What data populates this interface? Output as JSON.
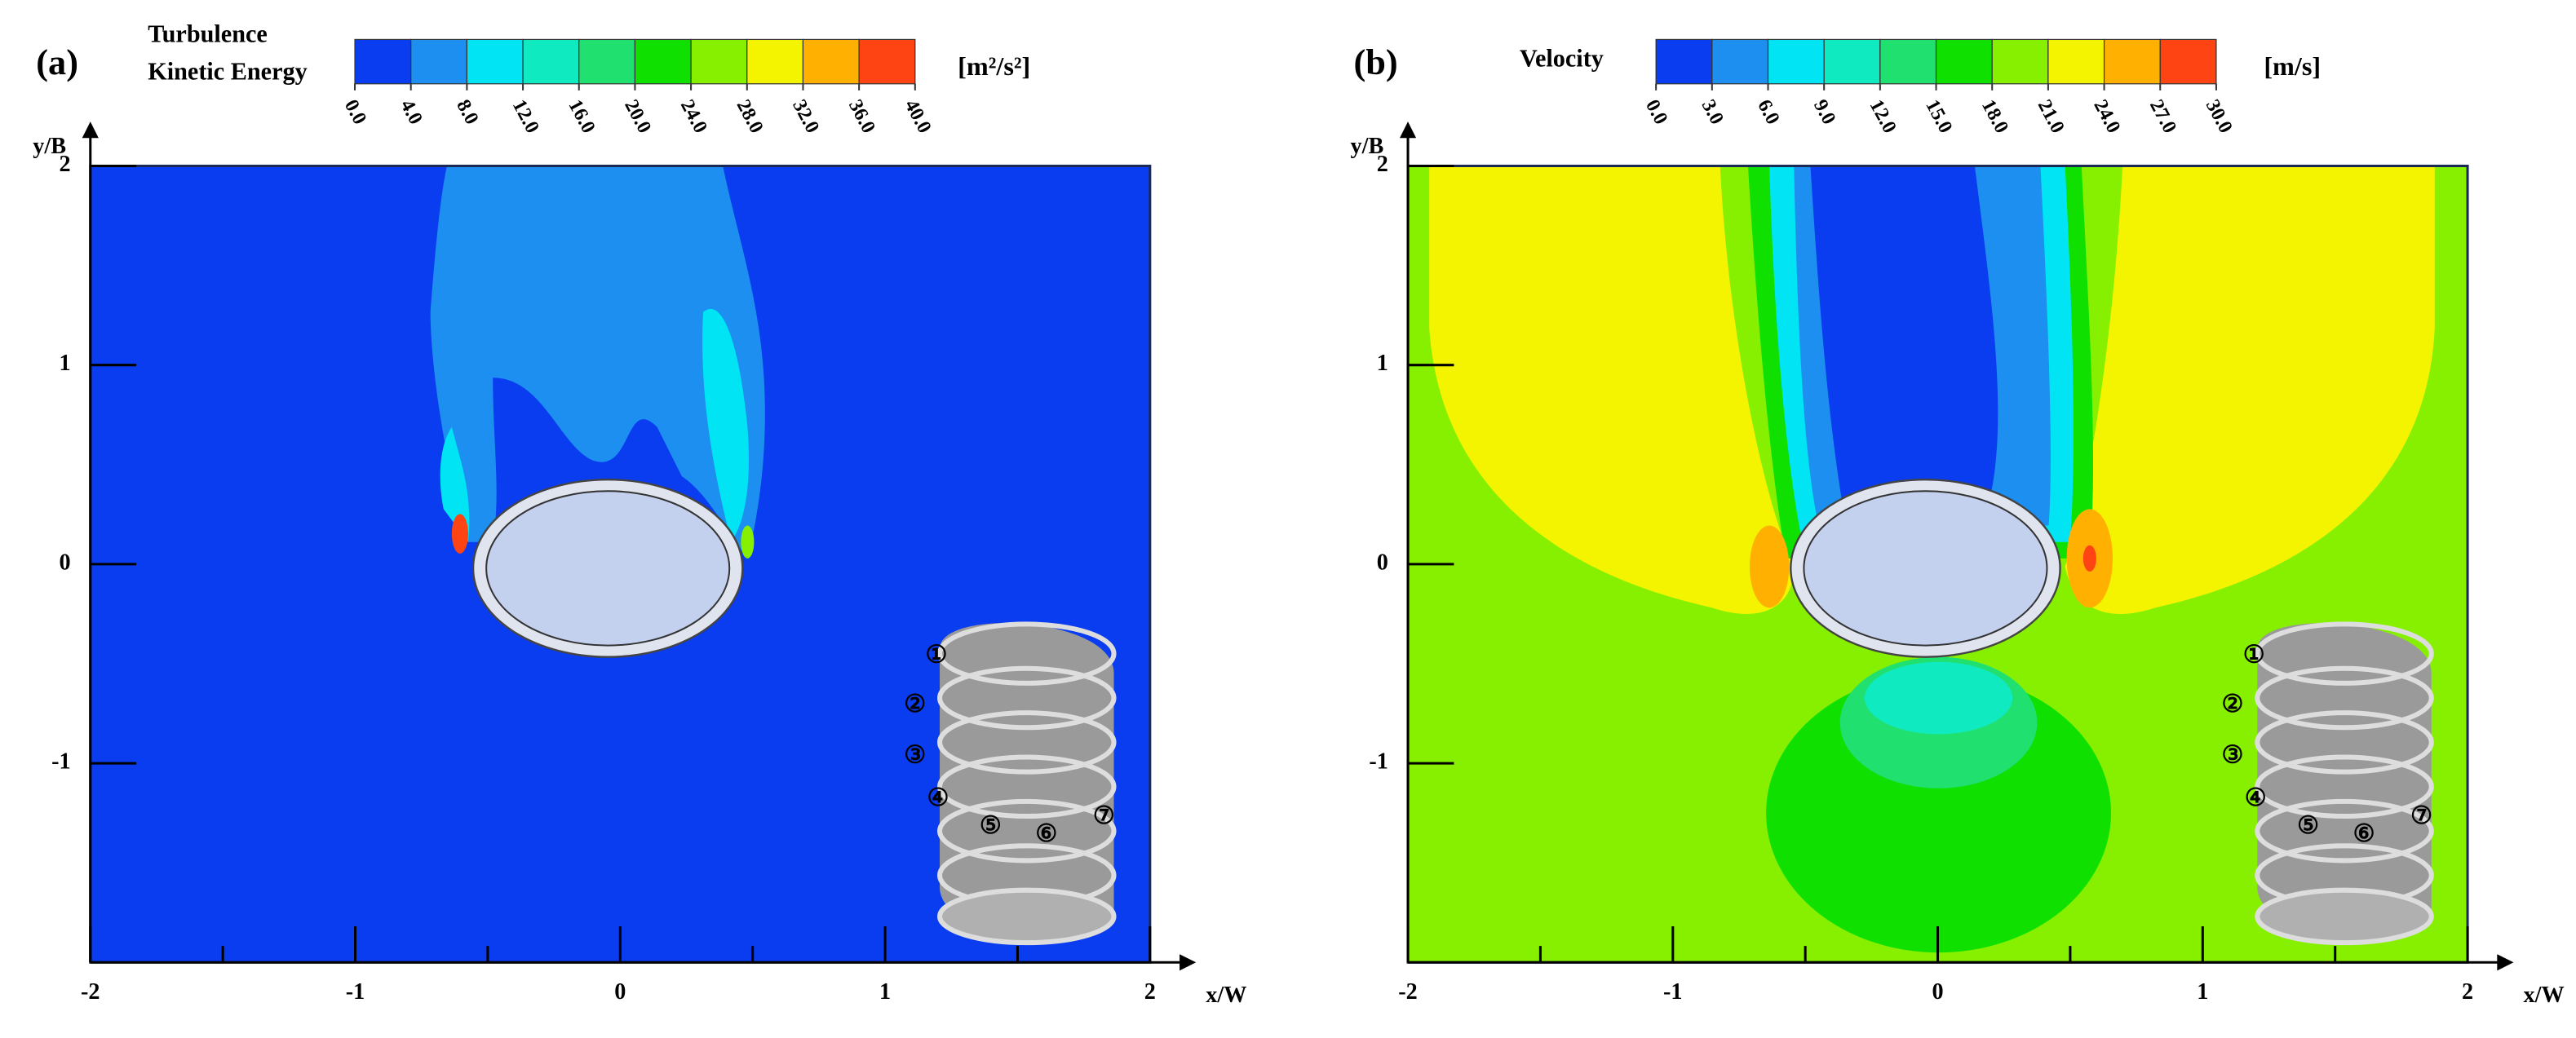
{
  "chart_data": [
    {
      "type": "contour",
      "panel_label": "(a)",
      "colorbar_title": [
        "Turbulence",
        "Kinetic Energy"
      ],
      "colorbar_unit": "[m²/s²]",
      "colorbar_colors": [
        "#0a3cf0",
        "#1c8ff0",
        "#00e4f4",
        "#10eac0",
        "#20e070",
        "#10e000",
        "#86f000",
        "#f4f400",
        "#ffb000",
        "#ff4414"
      ],
      "colorbar_ticks": [
        {
          "value": 0,
          "label": "0.0"
        },
        {
          "value": 4,
          "label": "4.0"
        },
        {
          "value": 8,
          "label": "8.0"
        },
        {
          "value": 12,
          "label": "12.0"
        },
        {
          "value": 16,
          "label": "16.0"
        },
        {
          "value": 20,
          "label": "20.0"
        },
        {
          "value": 24,
          "label": "24.0"
        },
        {
          "value": 28,
          "label": "28.0"
        },
        {
          "value": 32,
          "label": "32.0"
        },
        {
          "value": 36,
          "label": "36.0"
        },
        {
          "value": 40,
          "label": "40.0"
        }
      ],
      "x_label": "x/W",
      "y_label": "y/B",
      "xlim": [
        -2,
        2
      ],
      "ylim": [
        -2,
        2
      ],
      "xticks": [
        -2,
        -1,
        0,
        1,
        2
      ],
      "xminor": [
        -1.5,
        -0.5,
        0.5,
        1.5
      ],
      "yticks": [
        -1,
        0,
        1,
        2
      ],
      "annotations": [
        "①",
        "②",
        "③",
        "④",
        "⑤",
        "⑥",
        "⑦"
      ]
    },
    {
      "type": "contour",
      "panel_label": "(b)",
      "colorbar_title": [
        "Velocity"
      ],
      "colorbar_unit": "[m/s]",
      "colorbar_colors": [
        "#0a3cf0",
        "#1c8ff0",
        "#00e4f4",
        "#10eac0",
        "#20e070",
        "#10e000",
        "#86f000",
        "#f4f400",
        "#ffb000",
        "#ff4414"
      ],
      "colorbar_ticks": [
        {
          "value": 0,
          "label": "0.0"
        },
        {
          "value": 3,
          "label": "3.0"
        },
        {
          "value": 6,
          "label": "6.0"
        },
        {
          "value": 9,
          "label": "9.0"
        },
        {
          "value": 12,
          "label": "12.0"
        },
        {
          "value": 15,
          "label": "15.0"
        },
        {
          "value": 18,
          "label": "18.0"
        },
        {
          "value": 21,
          "label": "21.0"
        },
        {
          "value": 24,
          "label": "24.0"
        },
        {
          "value": 27,
          "label": "27.0"
        },
        {
          "value": 30,
          "label": "30.0"
        }
      ],
      "x_label": "x/W",
      "y_label": "y/B",
      "xlim": [
        -2,
        2
      ],
      "ylim": [
        -2,
        2
      ],
      "xticks": [
        -2,
        -1,
        0,
        1,
        2
      ],
      "xminor": [
        -1.5,
        -0.5,
        0.5,
        1.5
      ],
      "yticks": [
        -1,
        0,
        1,
        2
      ],
      "annotations": [
        "①",
        "②",
        "③",
        "④",
        "⑤",
        "⑥",
        "⑦"
      ]
    }
  ]
}
